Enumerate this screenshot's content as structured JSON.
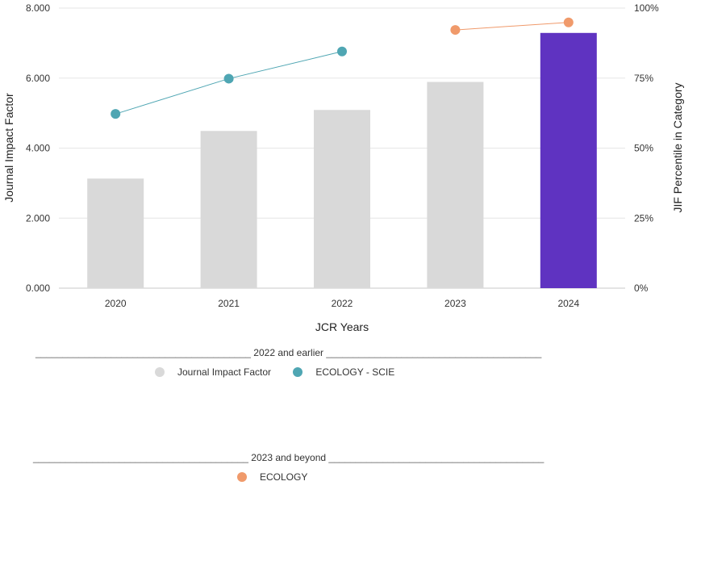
{
  "chart_data": {
    "type": "bar",
    "categories": [
      "2020",
      "2021",
      "2022",
      "2023",
      "2024"
    ],
    "xlabel": "JCR Years",
    "ylabel": "Journal Impact Factor",
    "y2label": "JIF Percentile in Category",
    "ylim": [
      0,
      8
    ],
    "y2lim": [
      0,
      100
    ],
    "yticks": [
      "0.000",
      "2.000",
      "4.000",
      "6.000",
      "8.000"
    ],
    "y2ticks": [
      "0%",
      "25%",
      "50%",
      "75%",
      "100%"
    ],
    "grid": true,
    "series": [
      {
        "name": "Journal Impact Factor",
        "kind": "bar",
        "axis": "left",
        "values": [
          3.13,
          4.49,
          5.09,
          5.89,
          7.29
        ],
        "colors": [
          "#d9d9d9",
          "#d9d9d9",
          "#d9d9d9",
          "#d9d9d9",
          "#5f33c1"
        ]
      },
      {
        "name": "ECOLOGY - SCIE",
        "kind": "line",
        "axis": "right",
        "color": "#4fa6b3",
        "x": [
          "2020",
          "2021",
          "2022"
        ],
        "values": [
          62.2,
          74.8,
          84.5
        ]
      },
      {
        "name": "ECOLOGY",
        "kind": "line",
        "axis": "right",
        "color": "#f09a6b",
        "x": [
          "2023",
          "2024"
        ],
        "values": [
          92.2,
          94.9
        ]
      }
    ]
  },
  "legend": {
    "group1": {
      "rule": "________________________________________",
      "heading": "2022 and earlier",
      "items": [
        {
          "label": "Journal Impact Factor",
          "color": "#d9d9d9"
        },
        {
          "label": "ECOLOGY - SCIE",
          "color": "#4fa6b3"
        }
      ]
    },
    "group2": {
      "rule": "________________________________________",
      "heading": "2023 and beyond",
      "items": [
        {
          "label": "ECOLOGY",
          "color": "#f09a6b"
        }
      ]
    }
  }
}
